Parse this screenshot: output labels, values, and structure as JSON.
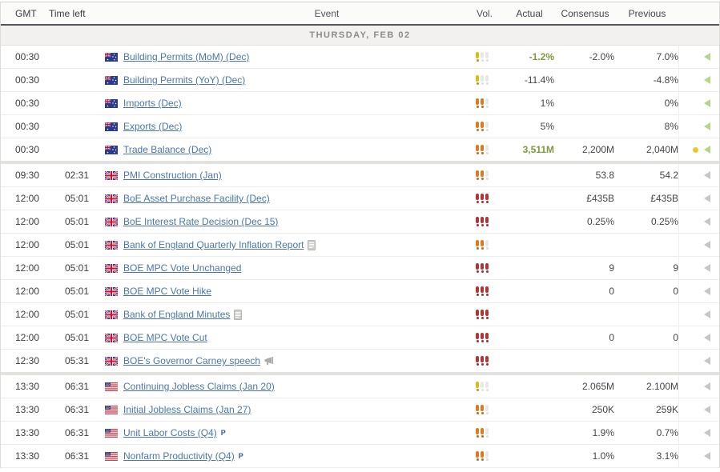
{
  "header": {
    "gmt": "GMT",
    "time_left": "Time left",
    "event": "Event",
    "vol": "Vol.",
    "actual": "Actual",
    "consensus": "Consensus",
    "previous": "Previous"
  },
  "date_header": "THURSDAY, FEB 02",
  "theme": {
    "link-blue": "#4a77ab",
    "good-green": "#7d9a3c",
    "value-gray": "#45454c",
    "vol-yellow": "#debb0f",
    "vol-orange": "#e0781f",
    "vol-red": "#b23434",
    "arrow-green": "#b7d489",
    "arrow-gray": "#c6c6c4",
    "dot-yellow": "#e9c929",
    "header-line": "#55555c"
  },
  "rows": [
    {
      "gmt": "00:30",
      "time_left": "",
      "country": "AU",
      "event": "Building Permits (MoM) (Dec)",
      "icon": "",
      "prelim": "",
      "vol": 1,
      "actual": "-1.2%",
      "actual_better": true,
      "consensus": "-2.0%",
      "previous": "7.0%",
      "revised_dot": false,
      "arrow": "green",
      "section_end": false
    },
    {
      "gmt": "00:30",
      "time_left": "",
      "country": "AU",
      "event": "Building Permits (YoY) (Dec)",
      "icon": "",
      "prelim": "",
      "vol": 1,
      "actual": "-11.4%",
      "actual_better": false,
      "consensus": "",
      "previous": "-4.8%",
      "revised_dot": false,
      "arrow": "green",
      "section_end": false
    },
    {
      "gmt": "00:30",
      "time_left": "",
      "country": "AU",
      "event": "Imports (Dec)",
      "icon": "",
      "prelim": "",
      "vol": 2,
      "actual": "1%",
      "actual_better": false,
      "consensus": "",
      "previous": "0%",
      "revised_dot": false,
      "arrow": "green",
      "section_end": false
    },
    {
      "gmt": "00:30",
      "time_left": "",
      "country": "AU",
      "event": "Exports (Dec)",
      "icon": "",
      "prelim": "",
      "vol": 2,
      "actual": "5%",
      "actual_better": false,
      "consensus": "",
      "previous": "8%",
      "revised_dot": false,
      "arrow": "green",
      "section_end": false
    },
    {
      "gmt": "00:30",
      "time_left": "",
      "country": "AU",
      "event": "Trade Balance (Dec)",
      "icon": "",
      "prelim": "",
      "vol": 2,
      "actual": "3,511M",
      "actual_better": true,
      "consensus": "2,200M",
      "previous": "2,040M",
      "revised_dot": true,
      "arrow": "green",
      "section_end": true
    },
    {
      "gmt": "09:30",
      "time_left": "02:31",
      "country": "GB",
      "event": "PMI Construction (Jan)",
      "icon": "",
      "prelim": "",
      "vol": 2,
      "actual": "",
      "actual_better": false,
      "consensus": "53.8",
      "previous": "54.2",
      "revised_dot": false,
      "arrow": "gray",
      "section_end": false
    },
    {
      "gmt": "12:00",
      "time_left": "05:01",
      "country": "GB",
      "event": "BoE Asset Purchase Facility (Dec)",
      "icon": "",
      "prelim": "",
      "vol": 3,
      "actual": "",
      "actual_better": false,
      "consensus": "£435B",
      "previous": "£435B",
      "revised_dot": false,
      "arrow": "gray",
      "section_end": false
    },
    {
      "gmt": "12:00",
      "time_left": "05:01",
      "country": "GB",
      "event": "BoE Interest Rate Decision (Dec 15)",
      "icon": "",
      "prelim": "",
      "vol": 3,
      "actual": "",
      "actual_better": false,
      "consensus": "0.25%",
      "previous": "0.25%",
      "revised_dot": false,
      "arrow": "gray",
      "section_end": false
    },
    {
      "gmt": "12:00",
      "time_left": "05:01",
      "country": "GB",
      "event": "Bank of England Quarterly Inflation Report",
      "icon": "report",
      "prelim": "",
      "vol": 2,
      "actual": "",
      "actual_better": false,
      "consensus": "",
      "previous": "",
      "revised_dot": false,
      "arrow": "gray",
      "section_end": false
    },
    {
      "gmt": "12:00",
      "time_left": "05:01",
      "country": "GB",
      "event": "BOE MPC Vote Unchanged",
      "icon": "",
      "prelim": "",
      "vol": 3,
      "actual": "",
      "actual_better": false,
      "consensus": "9",
      "previous": "9",
      "revised_dot": false,
      "arrow": "gray",
      "section_end": false
    },
    {
      "gmt": "12:00",
      "time_left": "05:01",
      "country": "GB",
      "event": "BOE MPC Vote Hike",
      "icon": "",
      "prelim": "",
      "vol": 3,
      "actual": "",
      "actual_better": false,
      "consensus": "0",
      "previous": "0",
      "revised_dot": false,
      "arrow": "gray",
      "section_end": false
    },
    {
      "gmt": "12:00",
      "time_left": "05:01",
      "country": "GB",
      "event": "Bank of England Minutes",
      "icon": "report",
      "prelim": "",
      "vol": 3,
      "actual": "",
      "actual_better": false,
      "consensus": "",
      "previous": "",
      "revised_dot": false,
      "arrow": "gray",
      "section_end": false
    },
    {
      "gmt": "12:00",
      "time_left": "05:01",
      "country": "GB",
      "event": "BOE MPC Vote Cut",
      "icon": "",
      "prelim": "",
      "vol": 3,
      "actual": "",
      "actual_better": false,
      "consensus": "0",
      "previous": "0",
      "revised_dot": false,
      "arrow": "gray",
      "section_end": false
    },
    {
      "gmt": "12:30",
      "time_left": "05:31",
      "country": "GB",
      "event": "BOE's Governor Carney speech",
      "icon": "speech",
      "prelim": "",
      "vol": 3,
      "actual": "",
      "actual_better": false,
      "consensus": "",
      "previous": "",
      "revised_dot": false,
      "arrow": "gray",
      "section_end": true
    },
    {
      "gmt": "13:30",
      "time_left": "06:31",
      "country": "US",
      "event": "Continuing Jobless Claims (Jan 20)",
      "icon": "",
      "prelim": "",
      "vol": 1,
      "actual": "",
      "actual_better": false,
      "consensus": "2.065M",
      "previous": "2.100M",
      "revised_dot": false,
      "arrow": "gray",
      "section_end": false
    },
    {
      "gmt": "13:30",
      "time_left": "06:31",
      "country": "US",
      "event": "Initial Jobless Claims (Jan 27)",
      "icon": "",
      "prelim": "",
      "vol": 2,
      "actual": "",
      "actual_better": false,
      "consensus": "250K",
      "previous": "259K",
      "revised_dot": false,
      "arrow": "gray",
      "section_end": false
    },
    {
      "gmt": "13:30",
      "time_left": "06:31",
      "country": "US",
      "event": "Unit Labor Costs (Q4)",
      "icon": "",
      "prelim": "P",
      "vol": 2,
      "actual": "",
      "actual_better": false,
      "consensus": "1.9%",
      "previous": "0.7%",
      "revised_dot": false,
      "arrow": "gray",
      "section_end": false
    },
    {
      "gmt": "13:30",
      "time_left": "06:31",
      "country": "US",
      "event": "Nonfarm Productivity (Q4)",
      "icon": "",
      "prelim": "P",
      "vol": 2,
      "actual": "",
      "actual_better": false,
      "consensus": "1.0%",
      "previous": "3.1%",
      "revised_dot": false,
      "arrow": "gray",
      "section_end": false
    }
  ]
}
